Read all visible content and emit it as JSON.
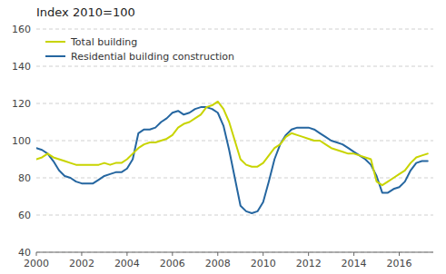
{
  "chart_data": {
    "type": "line",
    "title": "Index 2010=100",
    "x": [
      2000.0,
      2000.25,
      2000.5,
      2000.75,
      2001.0,
      2001.25,
      2001.5,
      2001.75,
      2002.0,
      2002.25,
      2002.5,
      2002.75,
      2003.0,
      2003.25,
      2003.5,
      2003.75,
      2004.0,
      2004.25,
      2004.5,
      2004.75,
      2005.0,
      2005.25,
      2005.5,
      2005.75,
      2006.0,
      2006.25,
      2006.5,
      2006.75,
      2007.0,
      2007.25,
      2007.5,
      2007.75,
      2008.0,
      2008.25,
      2008.5,
      2008.75,
      2009.0,
      2009.25,
      2009.5,
      2009.75,
      2010.0,
      2010.25,
      2010.5,
      2010.75,
      2011.0,
      2011.25,
      2011.5,
      2011.75,
      2012.0,
      2012.25,
      2012.5,
      2012.75,
      2013.0,
      2013.25,
      2013.5,
      2013.75,
      2014.0,
      2014.25,
      2014.5,
      2014.75,
      2015.0,
      2015.25,
      2015.5,
      2015.75,
      2016.0,
      2016.25,
      2016.5,
      2016.75,
      2017.0,
      2017.25
    ],
    "series": [
      {
        "name": "Total building",
        "color": "#c8d400",
        "values": [
          90,
          91,
          93,
          91,
          90,
          89,
          88,
          87,
          87,
          87,
          87,
          87,
          88,
          87,
          88,
          88,
          90,
          93,
          96,
          98,
          99,
          99,
          100,
          101,
          103,
          107,
          109,
          110,
          112,
          114,
          118,
          119,
          121,
          117,
          110,
          100,
          90,
          87,
          86,
          86,
          88,
          92,
          96,
          98,
          102,
          104,
          103,
          102,
          101,
          100,
          100,
          98,
          96,
          95,
          94,
          93,
          93,
          92,
          91,
          90,
          78,
          76,
          78,
          80,
          82,
          84,
          88,
          91,
          92,
          93
        ]
      },
      {
        "name": "Residential building construction",
        "color": "#2566a0",
        "values": [
          96,
          95,
          93,
          89,
          84,
          81,
          80,
          78,
          77,
          77,
          77,
          79,
          81,
          82,
          83,
          83,
          85,
          90,
          104,
          106,
          106,
          107,
          110,
          112,
          115,
          116,
          114,
          115,
          117,
          118,
          118,
          117,
          115,
          108,
          95,
          80,
          65,
          62,
          61,
          62,
          67,
          78,
          90,
          98,
          103,
          106,
          107,
          107,
          107,
          106,
          104,
          102,
          100,
          99,
          98,
          96,
          94,
          92,
          90,
          87,
          81,
          72,
          72,
          74,
          75,
          78,
          84,
          88,
          89,
          89
        ]
      }
    ],
    "xlim": [
      2000.0,
      2017.5
    ],
    "xticks": [
      2000,
      2002,
      2004,
      2006,
      2008,
      2010,
      2012,
      2014,
      2016
    ],
    "ylim": [
      40,
      160
    ],
    "yticks": [
      40,
      60,
      80,
      100,
      120,
      140,
      160
    ],
    "grid": true,
    "legend": "upper left"
  }
}
